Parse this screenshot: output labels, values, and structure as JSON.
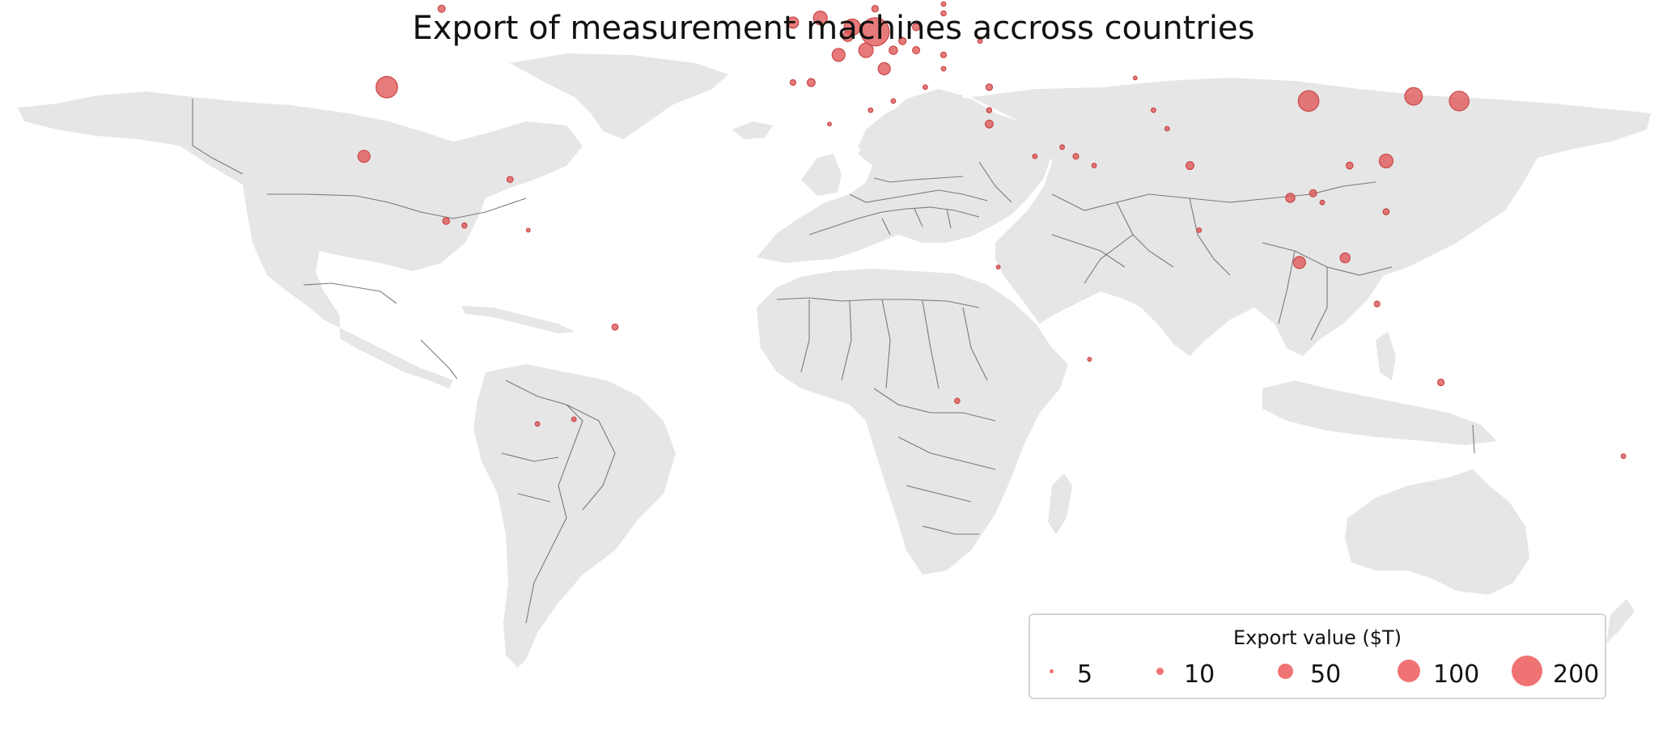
{
  "title": "Export of measurement machines accross countries",
  "legend": {
    "title": "Export value ($T)",
    "items": [
      {
        "label": "5",
        "value": 5
      },
      {
        "label": "10",
        "value": 10
      },
      {
        "label": "50",
        "value": 50
      },
      {
        "label": "100",
        "value": 100
      },
      {
        "label": "200",
        "value": 200
      }
    ],
    "placement": "bottom-right"
  },
  "colors": {
    "land": "#e6e6e6",
    "border": "#666666",
    "bubble": "#e05555",
    "legend_dot": "#f07373"
  },
  "map": {
    "projection": "equirectangular",
    "bubbles": [
      {
        "lon": -97,
        "lat": 39,
        "value": 110
      },
      {
        "lon": -102,
        "lat": 24,
        "value": 30
      },
      {
        "lon": -85,
        "lat": 56,
        "value": 8
      },
      {
        "lon": -70,
        "lat": 19,
        "value": 5
      },
      {
        "lon": -84,
        "lat": 10,
        "value": 7
      },
      {
        "lon": -80,
        "lat": 9,
        "value": 3
      },
      {
        "lon": -47,
        "lat": -13,
        "value": 5
      },
      {
        "lon": -64,
        "lat": -34,
        "value": 2
      },
      {
        "lon": -56,
        "lat": -33,
        "value": 2
      },
      {
        "lon": -66,
        "lat": 8,
        "value": 1
      },
      {
        "lon": 10,
        "lat": 51,
        "value": 200
      },
      {
        "lon": -2,
        "lat": 54,
        "value": 40
      },
      {
        "lon": -8,
        "lat": 53,
        "value": 25
      },
      {
        "lon": 5,
        "lat": 52,
        "value": 60
      },
      {
        "lon": 4,
        "lat": 50,
        "value": 20
      },
      {
        "lon": 8,
        "lat": 47,
        "value": 45
      },
      {
        "lon": 2,
        "lat": 46,
        "value": 35
      },
      {
        "lon": 12,
        "lat": 43,
        "value": 30
      },
      {
        "lon": 14,
        "lat": 47,
        "value": 12
      },
      {
        "lon": 19,
        "lat": 52,
        "value": 8
      },
      {
        "lon": 16,
        "lat": 49,
        "value": 8
      },
      {
        "lon": 19,
        "lat": 47,
        "value": 8
      },
      {
        "lon": 10,
        "lat": 56,
        "value": 6
      },
      {
        "lon": 15,
        "lat": 62,
        "value": 6
      },
      {
        "lon": 9,
        "lat": 61,
        "value": 4
      },
      {
        "lon": 25,
        "lat": 62,
        "value": 6
      },
      {
        "lon": 25,
        "lat": 46,
        "value": 4
      },
      {
        "lon": 25,
        "lat": 55,
        "value": 3
      },
      {
        "lon": 25,
        "lat": 57,
        "value": 2
      },
      {
        "lon": 25,
        "lat": 59,
        "value": 2
      },
      {
        "lon": 25,
        "lat": 43,
        "value": 2
      },
      {
        "lon": 21,
        "lat": 39,
        "value": 2
      },
      {
        "lon": 33,
        "lat": 49,
        "value": 2
      },
      {
        "lon": -4,
        "lat": 40,
        "value": 10
      },
      {
        "lon": -8,
        "lat": 40,
        "value": 4
      },
      {
        "lon": 14,
        "lat": 36,
        "value": 2
      },
      {
        "lon": 9,
        "lat": 34,
        "value": 2
      },
      {
        "lon": 35,
        "lat": 39,
        "value": 6
      },
      {
        "lon": 35,
        "lat": 31,
        "value": 10
      },
      {
        "lon": 35,
        "lat": 34,
        "value": 3
      },
      {
        "lon": 0,
        "lat": 31,
        "value": 1
      },
      {
        "lon": 45,
        "lat": 24,
        "value": 2
      },
      {
        "lon": 54,
        "lat": 24,
        "value": 4
      },
      {
        "lon": 51,
        "lat": 26,
        "value": 2
      },
      {
        "lon": 58,
        "lat": 22,
        "value": 2
      },
      {
        "lon": 71,
        "lat": 34,
        "value": 2
      },
      {
        "lon": 74,
        "lat": 30,
        "value": 2
      },
      {
        "lon": 67,
        "lat": 41,
        "value": 1
      },
      {
        "lon": 79,
        "lat": 22,
        "value": 10
      },
      {
        "lon": 81,
        "lat": 8,
        "value": 2
      },
      {
        "lon": 105,
        "lat": 36,
        "value": 100
      },
      {
        "lon": 128,
        "lat": 37,
        "value": 70
      },
      {
        "lon": 138,
        "lat": 36,
        "value": 90
      },
      {
        "lon": 122,
        "lat": 23,
        "value": 40
      },
      {
        "lon": 114,
        "lat": 22,
        "value": 7
      },
      {
        "lon": 101,
        "lat": 15,
        "value": 15
      },
      {
        "lon": 106,
        "lat": 16,
        "value": 8
      },
      {
        "lon": 108,
        "lat": 14,
        "value": 2
      },
      {
        "lon": 103,
        "lat": 1,
        "value": 30
      },
      {
        "lon": 113,
        "lat": 2,
        "value": 18
      },
      {
        "lon": 122,
        "lat": 12,
        "value": 5
      },
      {
        "lon": 120,
        "lat": -8,
        "value": 4
      },
      {
        "lon": 97,
        "lat": 62,
        "value": 3
      },
      {
        "lon": 134,
        "lat": -25,
        "value": 6
      },
      {
        "lon": 174,
        "lat": -41,
        "value": 2
      },
      {
        "lon": 28,
        "lat": -29,
        "value": 3
      },
      {
        "lon": 57,
        "lat": -20,
        "value": 1
      },
      {
        "lon": 37,
        "lat": 0,
        "value": 1
      },
      {
        "lon": -18,
        "lat": 65,
        "value": 1
      }
    ]
  }
}
